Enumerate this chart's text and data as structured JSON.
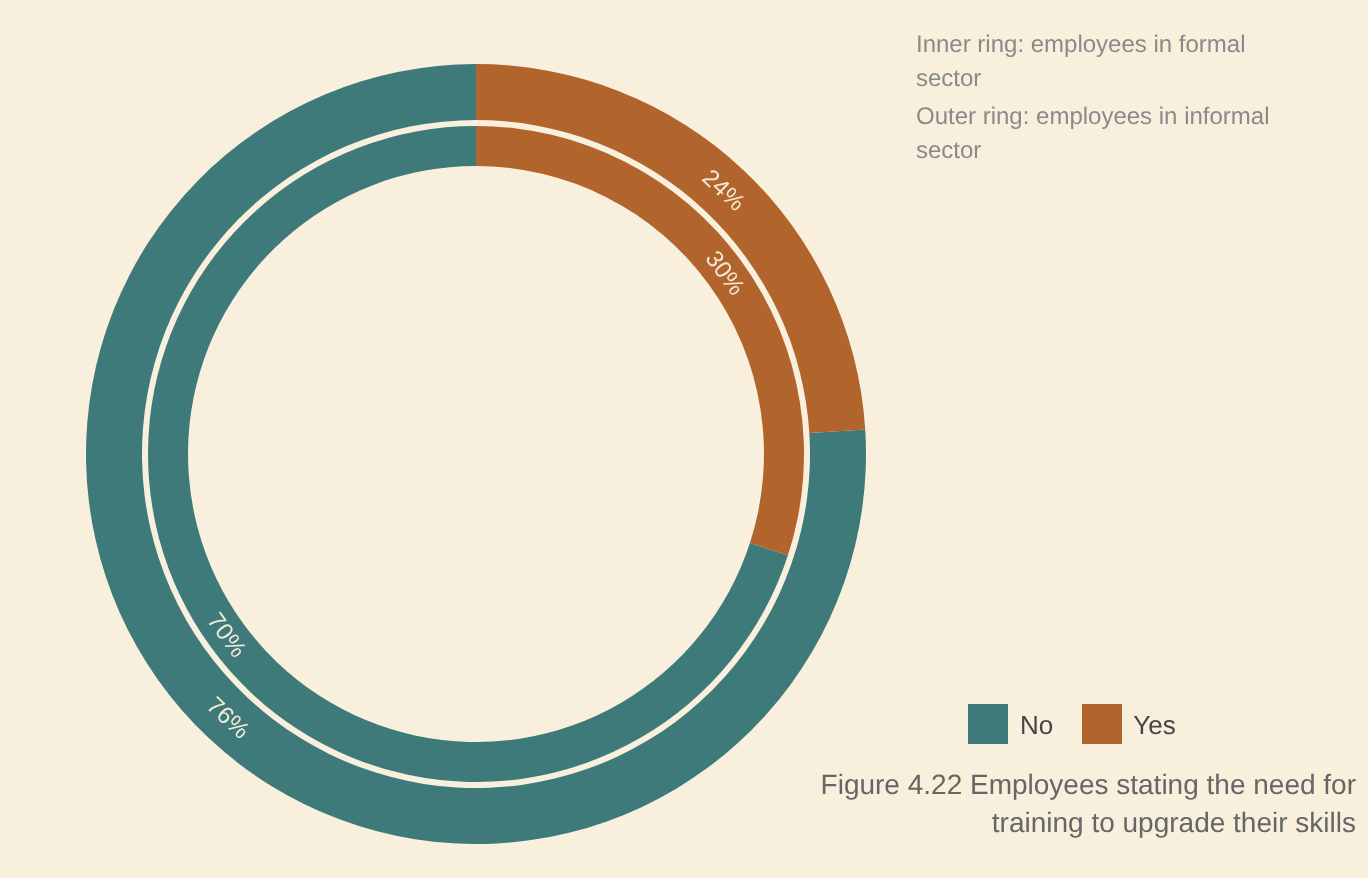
{
  "chart_data": {
    "type": "donut",
    "title": "Figure 4.22 Employees stating the need for training to upgrade their skills",
    "annotations": [
      "Inner ring: employees in formal sector",
      "Outer ring: employees in informal sector"
    ],
    "categories": [
      "No",
      "Yes"
    ],
    "colors": [
      "#3f7a7b",
      "#b1642c"
    ],
    "series": [
      {
        "values": [
          70,
          30
        ],
        "value_labels": [
          "70%",
          "30%"
        ]
      },
      {
        "values": [
          76,
          24
        ],
        "value_labels": [
          "76%",
          "24%"
        ]
      }
    ],
    "legend": "bottom right"
  }
}
